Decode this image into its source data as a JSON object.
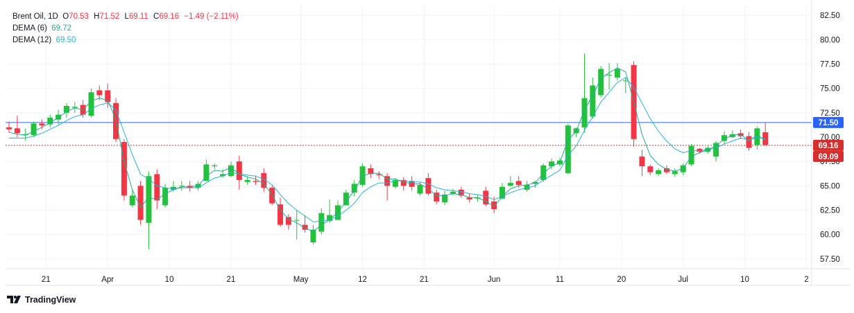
{
  "legend": {
    "symbol": "Brent Oil, 1D",
    "open_label": "O",
    "open": "70.53",
    "high_label": "H",
    "high": "71.52",
    "low_label": "L",
    "low": "69.11",
    "close_label": "C",
    "close": "69.16",
    "change": "−1.49 (−2.11%)",
    "dema6_label": "DEMA (6)",
    "dema6_value": "69.72",
    "dema12_label": "DEMA (12)",
    "dema12_value": "69.50"
  },
  "brand": "TradingView",
  "colors": {
    "up": "#22c33a",
    "down": "#f23645",
    "dema6": "#22ab94",
    "dema12": "#26b3d6",
    "hline": "#2962ff",
    "price_line": "#d32f2f"
  },
  "chart_data": {
    "type": "candlestick",
    "title": "Brent Oil, 1D",
    "ylim": [
      56.5,
      83.5
    ],
    "yticks": [
      57.5,
      60.0,
      62.5,
      65.0,
      67.5,
      70.0,
      72.5,
      75.0,
      77.5,
      80.0,
      82.5
    ],
    "ytick_labels": [
      "57.50",
      "60.00",
      "62.50",
      "65.00",
      "67.50",
      "70.00",
      "72.50",
      "75.00",
      "77.50",
      "80.00",
      "82.50"
    ],
    "xlim": [
      0,
      97
    ],
    "xticks": [
      {
        "i": 4.5,
        "label": "21"
      },
      {
        "i": 12,
        "label": "Apr"
      },
      {
        "i": 19.5,
        "label": "10"
      },
      {
        "i": 27,
        "label": "21"
      },
      {
        "i": 35.5,
        "label": "May"
      },
      {
        "i": 43,
        "label": "12"
      },
      {
        "i": 50.5,
        "label": "21"
      },
      {
        "i": 59,
        "label": "Jun"
      },
      {
        "i": 67,
        "label": "11"
      },
      {
        "i": 74.5,
        "label": "20"
      },
      {
        "i": 82,
        "label": "Jul"
      },
      {
        "i": 89.5,
        "label": "10"
      },
      {
        "i": 97,
        "label": "2"
      }
    ],
    "hline": {
      "value": 71.5,
      "label": "71.50"
    },
    "price_line": {
      "value": 69.16,
      "label": "69.16"
    },
    "dema_tag": {
      "value": 69.09,
      "label": "69.09"
    },
    "candles": [
      [
        71.0,
        70.8,
        71.6,
        70.5
      ],
      [
        70.9,
        70.4,
        72.2,
        70.0
      ],
      [
        70.2,
        70.3,
        70.9,
        69.6
      ],
      [
        70.2,
        71.4,
        71.6,
        70.0
      ],
      [
        71.4,
        71.2,
        71.8,
        70.8
      ],
      [
        71.3,
        72.0,
        72.3,
        71.0
      ],
      [
        71.8,
        72.3,
        72.8,
        71.3
      ],
      [
        72.5,
        73.2,
        73.5,
        72.0
      ],
      [
        73.0,
        73.1,
        73.6,
        72.5
      ],
      [
        73.3,
        72.3,
        73.8,
        72.0
      ],
      [
        72.2,
        74.6,
        75.0,
        72.0
      ],
      [
        74.8,
        74.3,
        75.3,
        73.8
      ],
      [
        74.8,
        73.6,
        75.5,
        73.0
      ],
      [
        73.5,
        69.8,
        74.0,
        69.5
      ],
      [
        69.5,
        64.0,
        69.8,
        63.5
      ],
      [
        63.0,
        64.0,
        64.5,
        62.8
      ],
      [
        65.0,
        61.5,
        65.5,
        61.0
      ],
      [
        61.2,
        66.0,
        66.5,
        58.5
      ],
      [
        66.2,
        63.5,
        66.7,
        62.6
      ],
      [
        63.0,
        64.8,
        65.2,
        62.8
      ],
      [
        64.6,
        64.9,
        65.5,
        64.4
      ],
      [
        65.0,
        65.0,
        65.5,
        64.5
      ],
      [
        65.0,
        64.8,
        65.5,
        64.4
      ],
      [
        64.8,
        65.2,
        65.5,
        64.5
      ],
      [
        65.5,
        67.2,
        67.7,
        65.5
      ],
      [
        67.0,
        67.1,
        67.3,
        66.7
      ],
      [
        66.0,
        66.2,
        66.7,
        65.8
      ],
      [
        66.0,
        67.1,
        67.5,
        65.9
      ],
      [
        67.5,
        65.6,
        68.1,
        64.6
      ],
      [
        65.4,
        65.6,
        66.0,
        65.1
      ],
      [
        65.5,
        65.4,
        66.0,
        65.1
      ],
      [
        66.3,
        64.8,
        66.8,
        64.4
      ],
      [
        64.8,
        63.2,
        65.0,
        63.0
      ],
      [
        63.1,
        61.0,
        63.8,
        60.8
      ],
      [
        61.8,
        61.0,
        62.1,
        60.5
      ],
      [
        61.5,
        61.5,
        62.5,
        59.5
      ],
      [
        61.0,
        60.5,
        62.0,
        60.2
      ],
      [
        59.2,
        60.5,
        61.0,
        59.0
      ],
      [
        60.3,
        62.2,
        62.7,
        60.0
      ],
      [
        61.4,
        62.0,
        63.6,
        61.2
      ],
      [
        61.5,
        63.0,
        63.5,
        61.5
      ],
      [
        63.0,
        64.3,
        64.6,
        63.0
      ],
      [
        64.3,
        65.2,
        65.6,
        63.9
      ],
      [
        65.1,
        67.0,
        67.3,
        64.9
      ],
      [
        66.8,
        66.2,
        67.2,
        65.8
      ],
      [
        66.2,
        66.1,
        66.5,
        65.7
      ],
      [
        66.0,
        65.0,
        66.3,
        63.5
      ],
      [
        64.9,
        65.6,
        65.8,
        64.7
      ],
      [
        65.6,
        65.0,
        65.9,
        64.5
      ],
      [
        65.5,
        64.9,
        66.0,
        64.5
      ],
      [
        64.2,
        65.1,
        65.4,
        64.0
      ],
      [
        65.8,
        64.2,
        66.3,
        64.0
      ],
      [
        64.3,
        63.4,
        64.6,
        63.1
      ],
      [
        63.3,
        64.1,
        64.5,
        63.0
      ],
      [
        64.2,
        64.4,
        64.7,
        64.0
      ],
      [
        64.6,
        64.0,
        64.9,
        63.8
      ],
      [
        63.8,
        63.6,
        64.2,
        63.3
      ],
      [
        63.7,
        63.8,
        64.1,
        63.4
      ],
      [
        64.5,
        63.1,
        64.9,
        62.9
      ],
      [
        63.4,
        62.6,
        63.9,
        62.2
      ],
      [
        63.7,
        64.9,
        65.3,
        63.6
      ],
      [
        65.0,
        65.3,
        66.0,
        64.9
      ],
      [
        65.5,
        65.1,
        66.0,
        64.8
      ],
      [
        64.6,
        65.1,
        65.5,
        64.4
      ],
      [
        65.2,
        65.4,
        65.5,
        64.8
      ],
      [
        65.6,
        67.1,
        67.3,
        65.4
      ],
      [
        67.0,
        67.5,
        67.8,
        66.7
      ],
      [
        67.2,
        67.6,
        67.9,
        67.0
      ],
      [
        66.3,
        71.2,
        71.4,
        66.2
      ],
      [
        70.4,
        70.9,
        71.0,
        70.0
      ],
      [
        71.0,
        74.0,
        78.6,
        70.5
      ],
      [
        72.1,
        75.3,
        76.1,
        71.9
      ],
      [
        74.3,
        77.0,
        77.3,
        74.1
      ],
      [
        76.4,
        76.4,
        77.6,
        74.9
      ],
      [
        76.1,
        77.0,
        77.6,
        75.8
      ],
      [
        75.8,
        75.8,
        76.2,
        74.5
      ],
      [
        77.4,
        69.8,
        77.8,
        69.0
      ],
      [
        68.0,
        67.0,
        68.7,
        66.0
      ],
      [
        67.0,
        66.4,
        67.2,
        66.1
      ],
      [
        66.2,
        66.6,
        66.8,
        66.0
      ],
      [
        66.8,
        66.4,
        67.1,
        66.2
      ],
      [
        66.2,
        66.5,
        66.8,
        65.9
      ],
      [
        66.4,
        67.1,
        67.3,
        66.1
      ],
      [
        67.2,
        69.1,
        69.3,
        67.0
      ],
      [
        68.8,
        68.5,
        68.9,
        68.3
      ],
      [
        68.5,
        68.9,
        69.1,
        68.3
      ],
      [
        68.0,
        69.4,
        69.6,
        67.5
      ],
      [
        69.6,
        70.2,
        70.6,
        69.3
      ],
      [
        70.0,
        70.3,
        70.7,
        69.9
      ],
      [
        70.4,
        70.1,
        70.8,
        69.8
      ],
      [
        70.1,
        68.9,
        70.5,
        68.6
      ],
      [
        69.2,
        70.9,
        71.1,
        68.7
      ],
      [
        70.5,
        69.2,
        71.5,
        69.1
      ]
    ],
    "dema6": [
      70.5,
      70.3,
      70.2,
      70.6,
      71.0,
      71.5,
      72.0,
      72.6,
      73.0,
      72.8,
      73.7,
      74.0,
      73.8,
      71.8,
      67.5,
      64.6,
      62.8,
      63.8,
      63.6,
      64.2,
      64.6,
      64.9,
      64.9,
      65.0,
      66.0,
      66.6,
      66.5,
      66.9,
      66.2,
      65.9,
      65.7,
      65.2,
      64.1,
      62.5,
      61.6,
      61.2,
      60.7,
      60.3,
      61.0,
      61.5,
      62.3,
      63.4,
      64.5,
      66.0,
      66.3,
      66.3,
      65.7,
      65.7,
      65.4,
      65.2,
      65.2,
      64.7,
      64.0,
      64.0,
      64.2,
      64.1,
      63.8,
      63.8,
      63.4,
      62.9,
      63.9,
      64.7,
      65.0,
      65.1,
      65.3,
      66.3,
      67.0,
      67.4,
      69.7,
      70.6,
      72.8,
      74.3,
      76.0,
      76.6,
      77.1,
      76.7,
      73.6,
      70.3,
      68.1,
      67.2,
      66.7,
      66.5,
      66.8,
      68.0,
      68.4,
      68.7,
      69.1,
      69.8,
      70.2,
      70.3,
      69.6,
      70.2,
      69.7
    ],
    "dema12": [
      69.9,
      69.9,
      69.9,
      70.1,
      70.4,
      70.8,
      71.2,
      71.7,
      72.1,
      72.3,
      72.9,
      73.3,
      73.5,
      72.8,
      70.5,
      68.2,
      66.2,
      65.7,
      65.0,
      64.8,
      64.7,
      64.8,
      64.8,
      64.8,
      65.3,
      65.8,
      66.0,
      66.4,
      66.2,
      66.1,
      66.0,
      65.7,
      65.1,
      64.1,
      63.2,
      62.5,
      61.9,
      61.3,
      61.4,
      61.5,
      61.9,
      62.5,
      63.2,
      64.3,
      64.9,
      65.3,
      65.3,
      65.5,
      65.5,
      65.4,
      65.4,
      65.2,
      64.8,
      64.6,
      64.5,
      64.4,
      64.2,
      64.1,
      63.9,
      63.6,
      63.9,
      64.3,
      64.6,
      64.8,
      65.0,
      65.6,
      66.1,
      66.6,
      68.1,
      69.1,
      70.7,
      72.1,
      73.6,
      74.6,
      75.6,
      76.1,
      75.1,
      73.5,
      71.9,
      70.6,
      69.6,
      68.8,
      68.4,
      68.6,
      68.6,
      68.7,
      68.9,
      69.3,
      69.6,
      69.9,
      69.7,
      70.0,
      69.8
    ]
  }
}
